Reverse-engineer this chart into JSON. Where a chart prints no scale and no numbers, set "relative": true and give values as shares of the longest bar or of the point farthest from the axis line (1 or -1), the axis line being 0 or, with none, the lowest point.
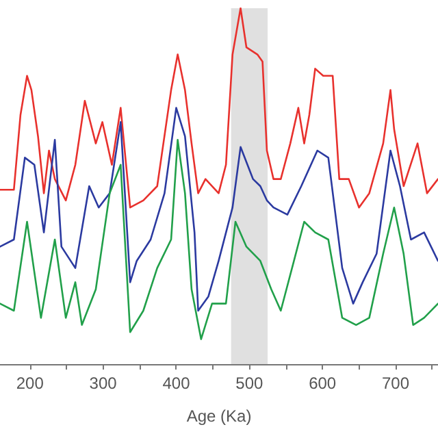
{
  "chart_data": {
    "type": "line",
    "relative": true,
    "xlabel": "Age (Ka)",
    "xlim": [
      159,
      758
    ],
    "xticks": [
      200,
      {
        "value": 250,
        "label": null
      },
      300,
      {
        "value": 350,
        "label": null
      },
      400,
      {
        "value": 450,
        "label": null
      },
      500,
      {
        "value": 550,
        "label": null
      },
      600,
      {
        "value": 650,
        "label": null
      },
      700,
      {
        "value": 750,
        "label": null
      }
    ],
    "bands": [
      {
        "axis": "x",
        "from": 475,
        "to": 525,
        "color": "#e0e0e0"
      }
    ],
    "grid": false,
    "marker": "none",
    "line_style": "solid",
    "series": [
      {
        "color": "#e8312d",
        "x": [
          159,
          178,
          187,
          196,
          202,
          211,
          219,
          226,
          234,
          249,
          262,
          275,
          290,
          299,
          312,
          324,
          337,
          355,
          374,
          393,
          402,
          412,
          421,
          430,
          440,
          458,
          468,
          477,
          488,
          496,
          511,
          518,
          524,
          533,
          543,
          556,
          567,
          575,
          582,
          590,
          601,
          614,
          623,
          636,
          650,
          664,
          683,
          693,
          698,
          711,
          730,
          743,
          758
        ],
        "values": [
          0.49,
          0.49,
          0.7,
          0.81,
          0.77,
          0.64,
          0.48,
          0.6,
          0.52,
          0.46,
          0.56,
          0.74,
          0.62,
          0.68,
          0.56,
          0.72,
          0.44,
          0.46,
          0.5,
          0.77,
          0.87,
          0.77,
          0.62,
          0.48,
          0.52,
          0.48,
          0.56,
          0.87,
          1,
          0.89,
          0.87,
          0.85,
          0.6,
          0.52,
          0.52,
          0.62,
          0.72,
          0.62,
          0.7,
          0.83,
          0.81,
          0.81,
          0.52,
          0.52,
          0.44,
          0.48,
          0.62,
          0.77,
          0.66,
          0.5,
          0.62,
          0.48,
          0.52
        ]
      },
      {
        "color": "#2b3aa0",
        "x": [
          159,
          178,
          193,
          206,
          219,
          234,
          243,
          262,
          281,
          294,
          309,
          324,
          337,
          346,
          365,
          384,
          400,
          412,
          425,
          430,
          444,
          458,
          477,
          488,
          505,
          515,
          524,
          533,
          552,
          571,
          593,
          608,
          627,
          642,
          655,
          674,
          693,
          706,
          721,
          739,
          758
        ],
        "values": [
          0.33,
          0.35,
          0.58,
          0.56,
          0.37,
          0.63,
          0.33,
          0.27,
          0.5,
          0.44,
          0.48,
          0.68,
          0.23,
          0.29,
          0.35,
          0.48,
          0.72,
          0.64,
          0.37,
          0.15,
          0.19,
          0.29,
          0.44,
          0.61,
          0.52,
          0.5,
          0.46,
          0.44,
          0.42,
          0.5,
          0.6,
          0.58,
          0.27,
          0.17,
          0.23,
          0.31,
          0.6,
          0.5,
          0.35,
          0.37,
          0.29
        ]
      },
      {
        "color": "#21a04a",
        "x": [
          159,
          178,
          196,
          215,
          234,
          249,
          262,
          271,
          290,
          309,
          324,
          337,
          355,
          374,
          393,
          402,
          412,
          421,
          434,
          449,
          468,
          481,
          496,
          515,
          530,
          543,
          561,
          575,
          590,
          608,
          627,
          646,
          664,
          683,
          698,
          711,
          724,
          739,
          758
        ],
        "values": [
          0.17,
          0.15,
          0.4,
          0.13,
          0.35,
          0.13,
          0.23,
          0.11,
          0.21,
          0.48,
          0.56,
          0.09,
          0.15,
          0.27,
          0.35,
          0.63,
          0.48,
          0.21,
          0.07,
          0.17,
          0.17,
          0.4,
          0.33,
          0.29,
          0.21,
          0.15,
          0.29,
          0.4,
          0.37,
          0.35,
          0.13,
          0.11,
          0.13,
          0.31,
          0.44,
          0.31,
          0.11,
          0.13,
          0.17
        ]
      }
    ]
  }
}
